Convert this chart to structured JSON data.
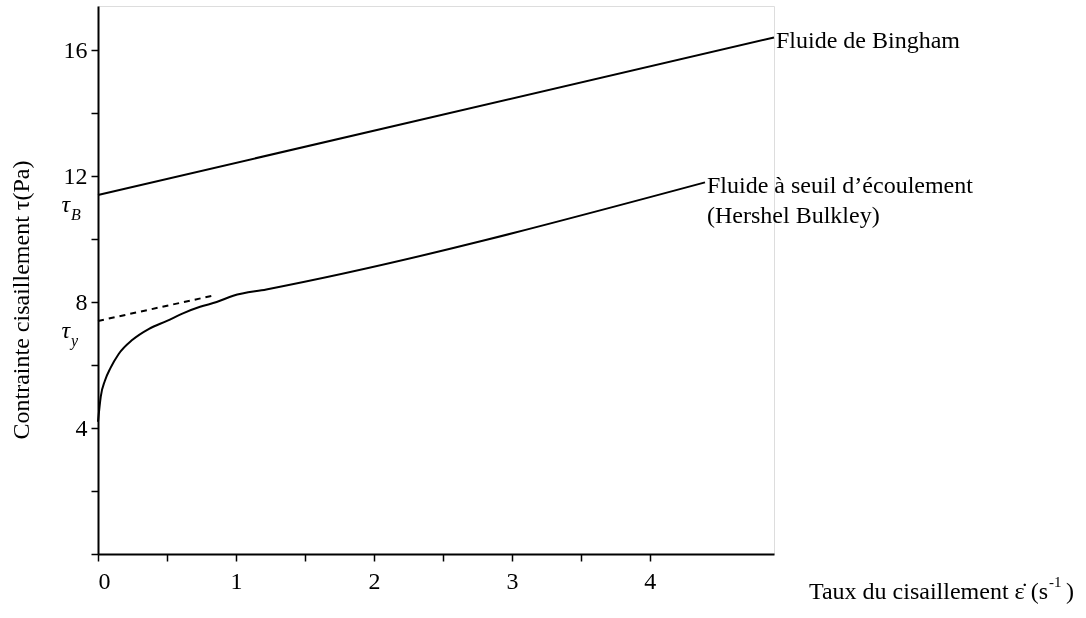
{
  "chart_data": {
    "type": "line",
    "xlabel": "Taux du cisaillement ε̇ (s$^{-1}$)",
    "ylabel": "Contrainte cisaillement τ(Pa)",
    "xlim": [
      0,
      4.9
    ],
    "ylim": [
      0,
      17.4
    ],
    "xticks": [
      0,
      {
        "value": 0.5,
        "label": null
      },
      1,
      {
        "value": 1.5,
        "label": null
      },
      2,
      {
        "value": 2.5,
        "label": null
      },
      3,
      {
        "value": 3.5,
        "label": null
      },
      4
    ],
    "yticks": [
      {
        "value": 0,
        "label": null
      },
      {
        "value": 2,
        "label": null
      },
      4,
      {
        "value": 6,
        "label": null
      },
      8,
      {
        "value": 10,
        "label": null
      },
      12,
      {
        "value": 14,
        "label": null
      },
      16
    ],
    "grid": false,
    "marker": "none",
    "series": [
      {
        "name": "Fluide de Bingham",
        "color": "#000000",
        "line_style": "solid",
        "x": [
          0,
          4.9
        ],
        "values": [
          11.4,
          16.4
        ]
      },
      {
        "name": "Fluide à seuil d’écoulement\n(Hershel Bulkley)",
        "color": "#000000",
        "line_style": "solid",
        "x": [
          0,
          0.02,
          0.05,
          0.09,
          0.15,
          0.25,
          0.37,
          0.5,
          0.62,
          0.74,
          0.86,
          0.98,
          1.22,
          4.4
        ],
        "values": [
          4.2,
          5.0,
          5.5,
          5.9,
          6.35,
          6.8,
          7.15,
          7.4,
          7.65,
          7.85,
          8.0,
          8.2,
          8.4,
          11.8
        ]
      },
      {
        "color": "#000000",
        "line_style": "dashed",
        "x": [
          0,
          0.83
        ],
        "values": [
          7.4,
          8.2
        ]
      }
    ],
    "annotations": [
      {
        "text": "τ$_{B}$",
        "x": 0,
        "y": 11.4
      },
      {
        "text": "τ$_{y}$",
        "x": 0,
        "y": 7.4
      }
    ]
  }
}
